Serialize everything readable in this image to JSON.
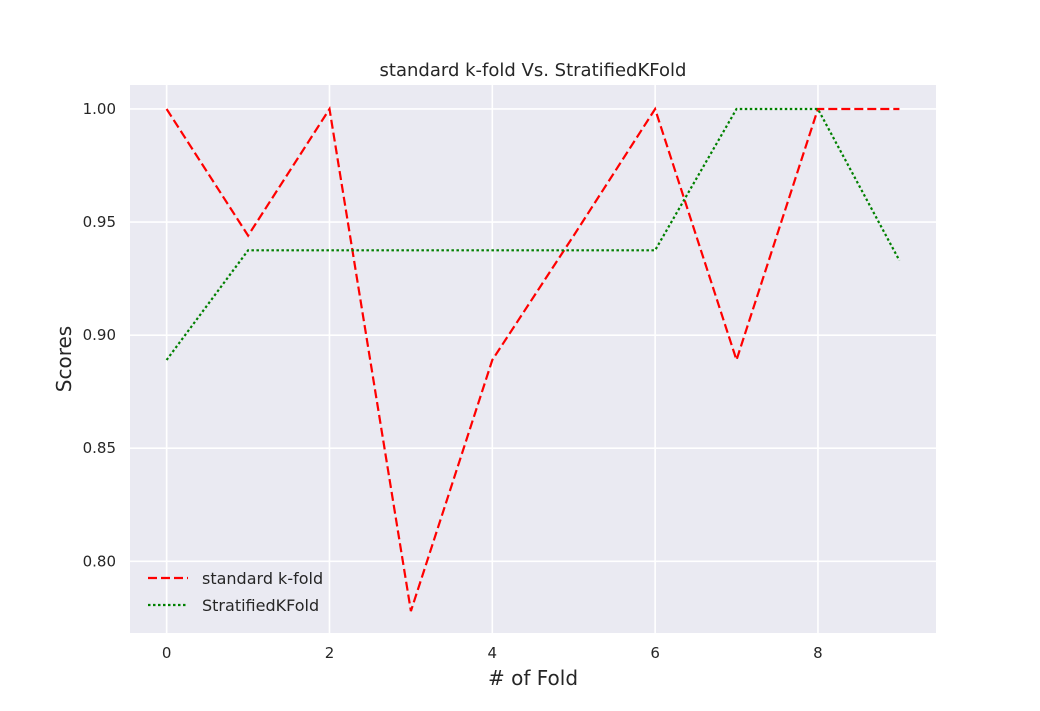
{
  "chart_data": {
    "type": "line",
    "title": "standard k-fold Vs. StratifiedKFold",
    "xlabel": "# of Fold",
    "ylabel": "Scores",
    "x": [
      0,
      1,
      2,
      3,
      4,
      5,
      6,
      7,
      8,
      9
    ],
    "xlim": [
      -0.45,
      9.45
    ],
    "ylim": [
      0.7683,
      1.0106
    ],
    "xticks": [
      0,
      2,
      4,
      6,
      8
    ],
    "yticks": [
      0.8,
      0.85,
      0.9,
      0.95,
      1.0
    ],
    "xtick_labels": [
      "0",
      "2",
      "4",
      "6",
      "8"
    ],
    "ytick_labels": [
      "0.80",
      "0.85",
      "0.90",
      "0.95",
      "1.00"
    ],
    "grid": true,
    "legend_position": "lower-left",
    "series": [
      {
        "name": "standard k-fold",
        "color": "#ff0000",
        "style": "dashed",
        "values": [
          1.0,
          0.944,
          1.0,
          0.778,
          0.889,
          0.944,
          1.0,
          0.889,
          1.0,
          1.0
        ]
      },
      {
        "name": "StratifiedKFold",
        "color": "#008000",
        "style": "dotted",
        "values": [
          0.889,
          0.9375,
          0.9375,
          0.9375,
          0.9375,
          0.9375,
          0.9375,
          1.0,
          1.0,
          0.933
        ]
      }
    ],
    "background": "#eaeaf2",
    "grid_color": "#ffffff"
  }
}
